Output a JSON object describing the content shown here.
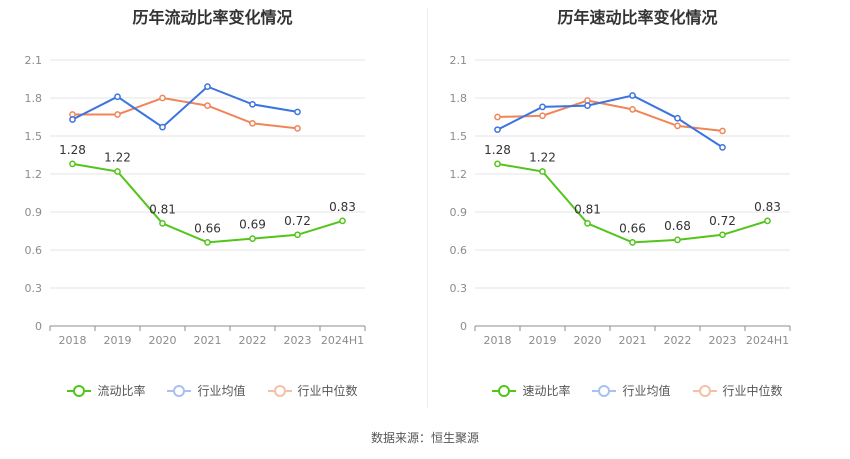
{
  "source": "数据来源：恒生聚源",
  "colors": {
    "main": "#52c41a",
    "avg": "#3b73e0",
    "median": "#f08558",
    "grid": "#e6e6e6",
    "axis": "#8c8c8c"
  },
  "chart_data": [
    {
      "type": "line",
      "title": "历年流动比率变化情况",
      "categories": [
        "2018",
        "2019",
        "2020",
        "2021",
        "2022",
        "2023",
        "2024H1"
      ],
      "yticks": [
        "0",
        "0.3",
        "0.6",
        "0.9",
        "1.2",
        "1.5",
        "1.8",
        "2.1"
      ],
      "ylim": [
        0,
        2.1
      ],
      "grid": true,
      "legend_position": "bottom",
      "series": [
        {
          "name": "流动比率",
          "color": "#52c41a",
          "show_labels": true,
          "values": [
            1.28,
            1.22,
            0.81,
            0.66,
            0.69,
            0.72,
            0.83
          ]
        },
        {
          "name": "行业均值",
          "color": "#3b73e0",
          "show_labels": false,
          "values": [
            1.63,
            1.81,
            1.57,
            1.89,
            1.75,
            1.69,
            null
          ]
        },
        {
          "name": "行业中位数",
          "color": "#f08558",
          "show_labels": false,
          "values": [
            1.67,
            1.67,
            1.8,
            1.74,
            1.6,
            1.56,
            null
          ]
        }
      ]
    },
    {
      "type": "line",
      "title": "历年速动比率变化情况",
      "categories": [
        "2018",
        "2019",
        "2020",
        "2021",
        "2022",
        "2023",
        "2024H1"
      ],
      "yticks": [
        "0",
        "0.3",
        "0.6",
        "0.9",
        "1.2",
        "1.5",
        "1.8",
        "2.1"
      ],
      "ylim": [
        0,
        2.1
      ],
      "grid": true,
      "legend_position": "bottom",
      "series": [
        {
          "name": "速动比率",
          "color": "#52c41a",
          "show_labels": true,
          "values": [
            1.28,
            1.22,
            0.81,
            0.66,
            0.68,
            0.72,
            0.83
          ]
        },
        {
          "name": "行业均值",
          "color": "#3b73e0",
          "show_labels": false,
          "values": [
            1.55,
            1.73,
            1.74,
            1.82,
            1.64,
            1.41,
            null
          ]
        },
        {
          "name": "行业中位数",
          "color": "#f08558",
          "show_labels": false,
          "values": [
            1.65,
            1.66,
            1.78,
            1.71,
            1.58,
            1.54,
            null
          ]
        }
      ]
    }
  ]
}
